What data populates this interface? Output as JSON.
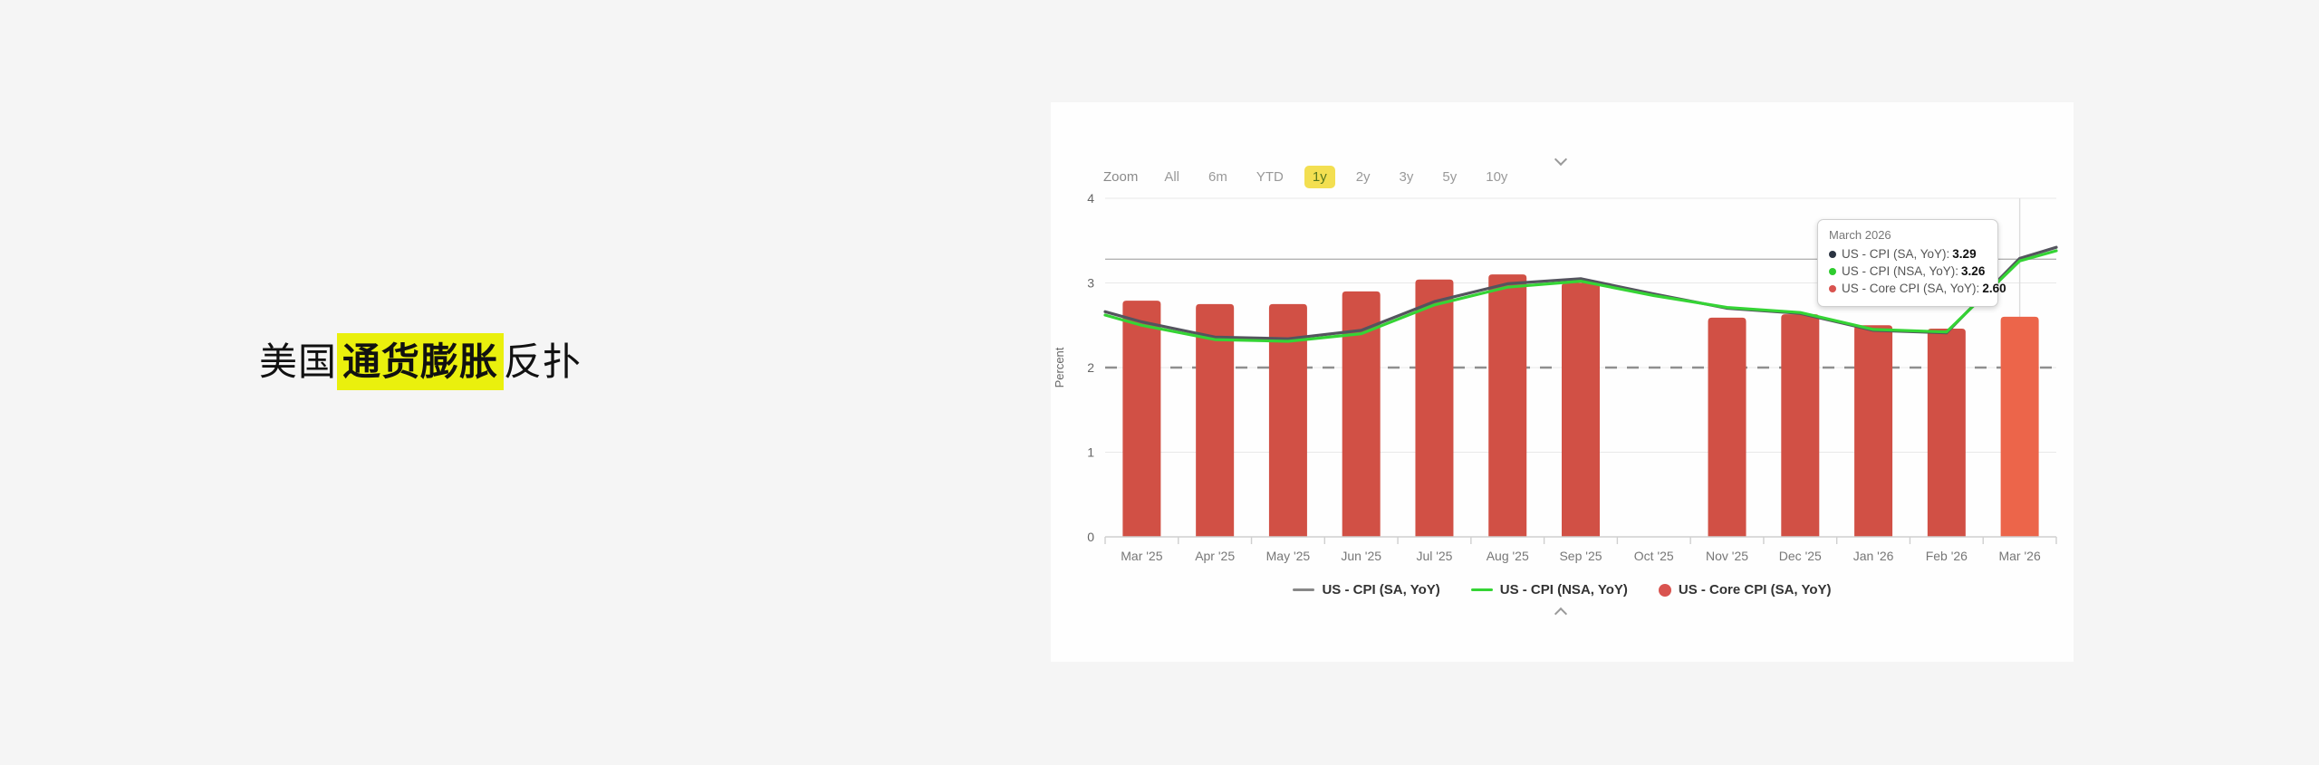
{
  "page": {
    "title_pre": "美国",
    "title_highlight": "通货膨胀",
    "title_post": "反扑",
    "highlight_color": "#eaf00d"
  },
  "range_selector": {
    "label": "Zoom",
    "buttons": [
      "All",
      "6m",
      "YTD",
      "1y",
      "2y",
      "3y",
      "5y",
      "10y"
    ],
    "selected": "1y"
  },
  "tooltip": {
    "title": "March 2026",
    "rows": [
      {
        "dot_color": "#2b3442",
        "label": "US - CPI (SA, YoY):",
        "value": "3.29"
      },
      {
        "dot_color": "#2ecc2e",
        "label": "US - CPI (NSA, YoY):",
        "value": "3.26"
      },
      {
        "dot_color": "#d9534f",
        "label": "US - Core CPI (SA, YoY):",
        "value": "2.60"
      }
    ]
  },
  "legend": [
    {
      "marker": "line",
      "color": "#888888",
      "label": "US - CPI (SA, YoY)"
    },
    {
      "marker": "line",
      "color": "#35d435",
      "label": "US - CPI (NSA, YoY)"
    },
    {
      "marker": "circle",
      "color": "#d9534f",
      "label": "US - Core CPI (SA, YoY)"
    }
  ],
  "chart_data": {
    "type": "combo",
    "title": "",
    "ylabel": "Percent",
    "ylim": [
      0,
      4
    ],
    "y_ticks": [
      0,
      1,
      2,
      3,
      4
    ],
    "grid": true,
    "categories": [
      "Mar '25",
      "Apr '25",
      "May '25",
      "Jun '25",
      "Jul '25",
      "Aug '25",
      "Sep '25",
      "Oct '25",
      "Nov '25",
      "Dec '25",
      "Jan '26",
      "Feb '26",
      "Mar '26"
    ],
    "target_dashed_line_y": 2,
    "crosshair_y": 3.28,
    "crosshair_x_index": 12,
    "series": [
      {
        "name": "US - CPI (SA, YoY)",
        "type": "line",
        "color": "#54545e",
        "values": [
          2.54,
          2.36,
          2.34,
          2.44,
          2.78,
          2.99,
          3.05,
          2.87,
          2.7,
          2.64,
          2.44,
          2.41,
          3.29
        ],
        "edge_left": 2.66,
        "edge_right": 3.42
      },
      {
        "name": "US - CPI (NSA, YoY)",
        "type": "line",
        "color": "#35d435",
        "values": [
          2.5,
          2.33,
          2.31,
          2.4,
          2.74,
          2.95,
          3.02,
          2.85,
          2.71,
          2.65,
          2.45,
          2.42,
          3.26
        ],
        "edge_left": 2.62,
        "edge_right": 3.38
      },
      {
        "name": "US - Core CPI (SA, YoY)",
        "type": "bar",
        "color": "#d15045",
        "highlight_color": "#ec654a",
        "highlight_index": 12,
        "values": [
          2.79,
          2.75,
          2.75,
          2.9,
          3.04,
          3.1,
          3.0,
          null,
          2.59,
          2.63,
          2.5,
          2.46,
          2.6
        ]
      }
    ]
  }
}
